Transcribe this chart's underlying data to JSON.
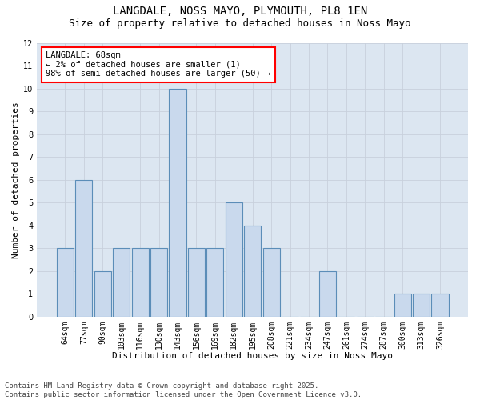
{
  "title1": "LANGDALE, NOSS MAYO, PLYMOUTH, PL8 1EN",
  "title2": "Size of property relative to detached houses in Noss Mayo",
  "xlabel": "Distribution of detached houses by size in Noss Mayo",
  "ylabel": "Number of detached properties",
  "categories": [
    "64sqm",
    "77sqm",
    "90sqm",
    "103sqm",
    "116sqm",
    "130sqm",
    "143sqm",
    "156sqm",
    "169sqm",
    "182sqm",
    "195sqm",
    "208sqm",
    "221sqm",
    "234sqm",
    "247sqm",
    "261sqm",
    "274sqm",
    "287sqm",
    "300sqm",
    "313sqm",
    "326sqm"
  ],
  "values": [
    3,
    6,
    2,
    3,
    3,
    3,
    10,
    3,
    3,
    5,
    4,
    3,
    0,
    0,
    2,
    0,
    0,
    0,
    1,
    1,
    1
  ],
  "bar_color": "#c9d9ed",
  "bar_edge_color": "#5b8db8",
  "annotation_box_text": "LANGDALE: 68sqm\n← 2% of detached houses are smaller (1)\n98% of semi-detached houses are larger (50) →",
  "annotation_box_color": "white",
  "annotation_box_edge_color": "red",
  "ylim": [
    0,
    12
  ],
  "yticks": [
    0,
    1,
    2,
    3,
    4,
    5,
    6,
    7,
    8,
    9,
    10,
    11,
    12
  ],
  "grid_color": "#c8d0dc",
  "background_color": "#dce6f1",
  "footnote": "Contains HM Land Registry data © Crown copyright and database right 2025.\nContains public sector information licensed under the Open Government Licence v3.0.",
  "title1_fontsize": 10,
  "title2_fontsize": 9,
  "xlabel_fontsize": 8,
  "ylabel_fontsize": 8,
  "tick_fontsize": 7,
  "annotation_fontsize": 7.5,
  "footnote_fontsize": 6.5
}
